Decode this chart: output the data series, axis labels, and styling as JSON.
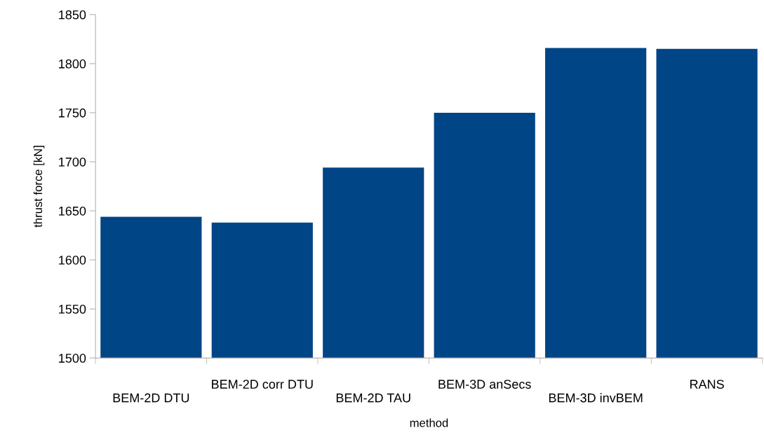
{
  "chart_data": {
    "type": "bar",
    "xlabel": "method",
    "ylabel": "thrust force [kN]",
    "categories": [
      "BEM-2D DTU",
      "BEM-2D corr DTU",
      "BEM-2D TAU",
      "BEM-3D anSecs",
      "BEM-3D invBEM",
      "RANS"
    ],
    "values": [
      1644,
      1638,
      1694,
      1750,
      1816,
      1815
    ],
    "color": "#004586",
    "ylim": [
      1500,
      1850
    ],
    "yticks": [
      1500,
      1550,
      1600,
      1650,
      1700,
      1750,
      1800,
      1850
    ],
    "grid": false,
    "legend": false
  }
}
